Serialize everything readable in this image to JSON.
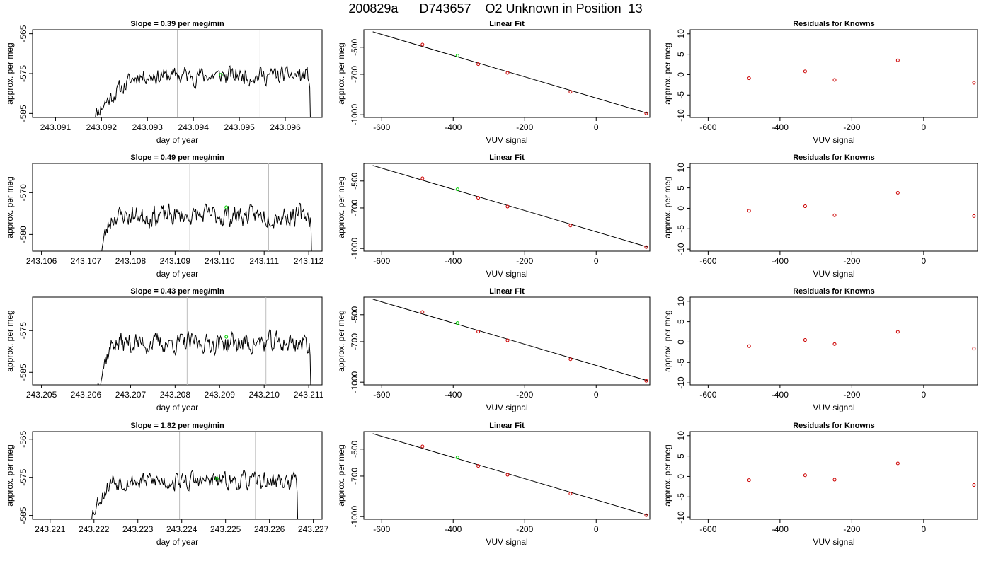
{
  "title": "200829a      D743657    O2 Unknown in Position  13",
  "colors": {
    "series_line": "#000000",
    "unknown_point": "#00cc00",
    "known_point": "#cc0000",
    "vertical_marker": "#bebebe",
    "fit_line": "#000000"
  },
  "chart_data": [
    {
      "type": "line",
      "row": 1,
      "title": "Slope =  0.39  per meg/min",
      "xlabel": "day of year",
      "ylabel": "approx. per meg",
      "xlim": [
        243.0905,
        243.0968
      ],
      "ylim": [
        -586,
        -564
      ],
      "xticks": [
        "243.091",
        "243.092",
        "243.093",
        "243.094",
        "243.095",
        "243.096"
      ],
      "yticks": [
        "-565",
        "-575",
        "-585"
      ],
      "x_start": 243.0918,
      "x_rise_end": 243.0928,
      "x_end": 243.09655,
      "y_level": -575.5,
      "y_noise": 1.8,
      "y_start": -587,
      "seed": 11,
      "vlines": [
        243.09365,
        243.09545
      ],
      "unknown_point": {
        "x": 243.0946,
        "y": -575.3
      }
    },
    {
      "type": "line",
      "row": 2,
      "title": "Slope =  0.49  per meg/min",
      "xlabel": "day of year",
      "ylabel": "approx. per meg",
      "xlim": [
        243.1058,
        243.1123
      ],
      "ylim": [
        -584,
        -563
      ],
      "xticks": [
        "243.106",
        "243.107",
        "243.108",
        "243.109",
        "243.110",
        "243.111",
        "243.112"
      ],
      "yticks": [
        "-570",
        "-580"
      ],
      "x_start": 243.10733,
      "x_rise_end": 243.1076,
      "x_end": 243.11207,
      "y_level": -575.5,
      "y_noise": 2.0,
      "y_start": -585,
      "seed": 23,
      "vlines": [
        243.10933,
        243.1111
      ],
      "unknown_point": {
        "x": 243.11015,
        "y": -573.5
      }
    },
    {
      "type": "line",
      "row": 3,
      "title": "Slope =  0.43  per meg/min",
      "xlabel": "day of year",
      "ylabel": "approx. per meg",
      "xlim": [
        243.2048,
        243.2113
      ],
      "ylim": [
        -588,
        -567
      ],
      "xticks": [
        "243.205",
        "243.206",
        "243.207",
        "243.208",
        "243.209",
        "243.210",
        "243.211"
      ],
      "yticks": [
        "-575",
        "-585"
      ],
      "x_start": 243.20625,
      "x_rise_end": 243.2066,
      "x_end": 243.21105,
      "y_level": -578,
      "y_noise": 2.0,
      "y_start": -589,
      "seed": 37,
      "vlines": [
        243.20827,
        243.21004
      ],
      "unknown_point": {
        "x": 243.20915,
        "y": -576.5
      }
    },
    {
      "type": "line",
      "row": 4,
      "title": "Slope =  1.82  per meg/min",
      "xlabel": "day of year",
      "ylabel": "approx. per meg",
      "xlim": [
        243.2206,
        243.2272
      ],
      "ylim": [
        -586,
        -563
      ],
      "xticks": [
        "243.221",
        "243.222",
        "243.223",
        "243.224",
        "243.225",
        "243.226",
        "243.227"
      ],
      "yticks": [
        "-565",
        "-575",
        "-585"
      ],
      "x_start": 243.2219,
      "x_rise_end": 243.2224,
      "x_end": 243.22665,
      "y_level": -576,
      "y_noise": 1.9,
      "y_start": -587,
      "seed": 53,
      "vlines": [
        243.22395,
        243.22568
      ],
      "unknown_point": {
        "x": 243.2248,
        "y": -575.3
      }
    },
    {
      "type": "scatter",
      "row": 1,
      "title": "Linear Fit",
      "xlabel": "VUV signal",
      "ylabel": "approx. per meg",
      "xlim": [
        -650,
        150
      ],
      "ylim": [
        -1020,
        -370
      ],
      "xticks": [
        -600,
        -400,
        -200,
        0
      ],
      "yticks": [
        -500,
        -700,
        -1000
      ],
      "fit_line": {
        "x": [
          -625,
          145
        ],
        "y": [
          -385,
          -990
        ]
      },
      "known": [
        [
          -486,
          -480
        ],
        [
          -330,
          -625
        ],
        [
          -248,
          -690
        ],
        [
          -72,
          -830
        ],
        [
          140,
          -990
        ]
      ],
      "unknown": [
        [
          -388,
          -562
        ]
      ]
    },
    {
      "type": "scatter",
      "row": 2,
      "title": "Linear Fit",
      "xlabel": "VUV signal",
      "ylabel": "approx. per meg",
      "xlim": [
        -650,
        150
      ],
      "ylim": [
        -1020,
        -370
      ],
      "xticks": [
        -600,
        -400,
        -200,
        0
      ],
      "yticks": [
        -500,
        -700,
        -1000
      ],
      "fit_line": {
        "x": [
          -625,
          145
        ],
        "y": [
          -385,
          -990
        ]
      },
      "known": [
        [
          -486,
          -480
        ],
        [
          -330,
          -625
        ],
        [
          -248,
          -690
        ],
        [
          -72,
          -830
        ],
        [
          140,
          -990
        ]
      ],
      "unknown": [
        [
          -388,
          -562
        ]
      ]
    },
    {
      "type": "scatter",
      "row": 3,
      "title": "Linear Fit",
      "xlabel": "VUV signal",
      "ylabel": "approx. per meg",
      "xlim": [
        -650,
        150
      ],
      "ylim": [
        -1020,
        -370
      ],
      "xticks": [
        -600,
        -400,
        -200,
        0
      ],
      "yticks": [
        -500,
        -700,
        -1000
      ],
      "fit_line": {
        "x": [
          -625,
          145
        ],
        "y": [
          -385,
          -990
        ]
      },
      "known": [
        [
          -486,
          -480
        ],
        [
          -330,
          -625
        ],
        [
          -248,
          -690
        ],
        [
          -72,
          -830
        ],
        [
          140,
          -990
        ]
      ],
      "unknown": [
        [
          -388,
          -562
        ]
      ]
    },
    {
      "type": "scatter",
      "row": 4,
      "title": "Linear Fit",
      "xlabel": "VUV signal",
      "ylabel": "approx. per meg",
      "xlim": [
        -650,
        150
      ],
      "ylim": [
        -1020,
        -370
      ],
      "xticks": [
        -600,
        -400,
        -200,
        0
      ],
      "yticks": [
        -500,
        -700,
        -1000
      ],
      "fit_line": {
        "x": [
          -625,
          145
        ],
        "y": [
          -385,
          -990
        ]
      },
      "known": [
        [
          -486,
          -480
        ],
        [
          -330,
          -625
        ],
        [
          -248,
          -690
        ],
        [
          -72,
          -830
        ],
        [
          140,
          -990
        ]
      ],
      "unknown": [
        [
          -388,
          -562
        ]
      ]
    },
    {
      "type": "scatter",
      "row": 1,
      "title": "Residuals for Knowns",
      "xlabel": "VUV signal",
      "ylabel": "approx. per meg",
      "xlim": [
        -650,
        150
      ],
      "ylim": [
        -10.5,
        11
      ],
      "xticks": [
        -600,
        -400,
        -200,
        0
      ],
      "yticks": [
        -10,
        -5,
        0,
        5,
        10
      ],
      "known": [
        [
          -486,
          -0.9
        ],
        [
          -330,
          0.8
        ],
        [
          -248,
          -1.3
        ],
        [
          -72,
          3.5
        ],
        [
          140,
          -2.0
        ]
      ]
    },
    {
      "type": "scatter",
      "row": 2,
      "title": "Residuals for Knowns",
      "xlabel": "VUV signal",
      "ylabel": "approx. per meg",
      "xlim": [
        -650,
        150
      ],
      "ylim": [
        -10.5,
        11
      ],
      "xticks": [
        -600,
        -400,
        -200,
        0
      ],
      "yticks": [
        -10,
        -5,
        0,
        5,
        10
      ],
      "known": [
        [
          -486,
          -0.6
        ],
        [
          -330,
          0.5
        ],
        [
          -248,
          -1.7
        ],
        [
          -72,
          3.8
        ],
        [
          140,
          -1.9
        ]
      ]
    },
    {
      "type": "scatter",
      "row": 3,
      "title": "Residuals for Knowns",
      "xlabel": "VUV signal",
      "ylabel": "approx. per meg",
      "xlim": [
        -650,
        150
      ],
      "ylim": [
        -10.5,
        11
      ],
      "xticks": [
        -600,
        -400,
        -200,
        0
      ],
      "yticks": [
        -10,
        -5,
        0,
        5,
        10
      ],
      "known": [
        [
          -486,
          -1.0
        ],
        [
          -330,
          0.5
        ],
        [
          -248,
          -0.5
        ],
        [
          -72,
          2.5
        ],
        [
          140,
          -1.6
        ]
      ]
    },
    {
      "type": "scatter",
      "row": 4,
      "title": "Residuals for Knowns",
      "xlabel": "VUV signal",
      "ylabel": "approx. per meg",
      "xlim": [
        -650,
        150
      ],
      "ylim": [
        -10.5,
        11
      ],
      "xticks": [
        -600,
        -400,
        -200,
        0
      ],
      "yticks": [
        -10,
        -5,
        0,
        5,
        10
      ],
      "known": [
        [
          -486,
          -0.9
        ],
        [
          -330,
          0.3
        ],
        [
          -248,
          -0.8
        ],
        [
          -72,
          3.2
        ],
        [
          140,
          -2.1
        ]
      ]
    }
  ]
}
